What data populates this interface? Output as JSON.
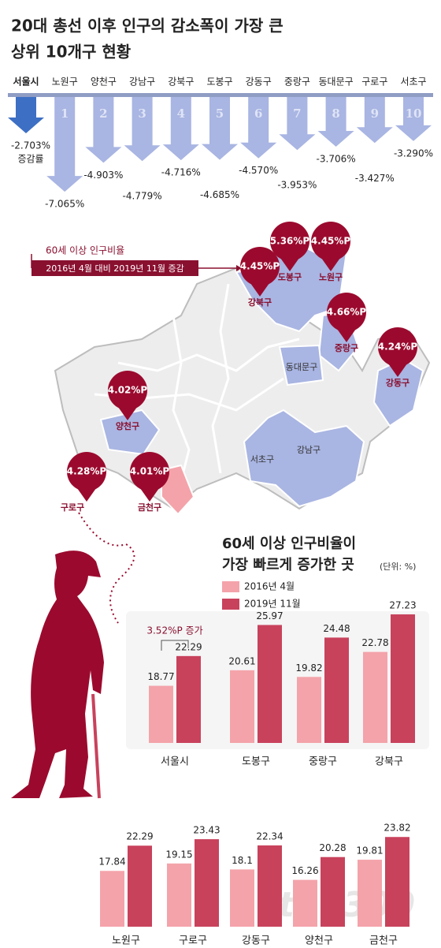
{
  "chart_data": [
    {
      "type": "arrow",
      "title": [
        "20대 총선 이후 인구의 감소폭이 가장 큰",
        "상위 10개구 현황"
      ],
      "categories": [
        "서울시",
        "노원구",
        "양천구",
        "강남구",
        "강북구",
        "도봉구",
        "강동구",
        "중랑구",
        "동대문구",
        "구로구",
        "서초구"
      ],
      "ranks": [
        null,
        1,
        2,
        3,
        4,
        5,
        6,
        7,
        8,
        9,
        10
      ],
      "values": [
        -2.703,
        -7.065,
        -4.903,
        -4.779,
        -4.716,
        -4.685,
        -4.57,
        -3.953,
        -3.706,
        -3.427,
        -3.29
      ],
      "value_labels": [
        "-2.703%",
        "-7.065%",
        "-4.903%",
        "-4.779%",
        "-4.716%",
        "-4.685%",
        "-4.570%",
        "-3.953%",
        "-3.706%",
        "-3.427%",
        "-3.290%"
      ],
      "value_caption": "증감률",
      "colors": [
        "#3d6fc4",
        "#a9b5e2",
        "#a9b5e2",
        "#a9b5e2",
        "#a9b5e2",
        "#a9b5e2",
        "#a9b5e2",
        "#a9b5e2",
        "#a9b5e2",
        "#a9b5e2",
        "#a9b5e2"
      ]
    },
    {
      "type": "grouped_bar",
      "title": [
        "60세 이상 인구비율이",
        "가장 빠르게 증가한 곳"
      ],
      "unit": "(단위: %)",
      "categories": [
        "서울시",
        "도봉구",
        "중랑구",
        "강북구"
      ],
      "series": [
        {
          "name": "2016년 4월",
          "color": "#f4a3aa",
          "values": [
            18.77,
            20.61,
            19.82,
            22.78
          ]
        },
        {
          "name": "2019년 11월",
          "color": "#c8425c",
          "values": [
            22.29,
            25.97,
            24.48,
            27.23
          ]
        }
      ],
      "ylim": [
        12,
        29
      ],
      "annotation": "3.52%P 증가"
    },
    {
      "type": "grouped_bar",
      "categories": [
        "노원구",
        "구로구",
        "강동구",
        "양천구",
        "금천구"
      ],
      "series": [
        {
          "color": "#f4a3aa",
          "values": [
            17.84,
            19.15,
            18.1,
            16.26,
            19.81
          ]
        },
        {
          "color": "#c8425c",
          "values": [
            22.29,
            23.43,
            22.34,
            20.28,
            23.82
          ]
        }
      ],
      "ylim": [
        8,
        29
      ]
    }
  ],
  "map": {
    "note_title": "60세 이상 인구비율",
    "note_text": "2016년 4월 대비 2019년 11월 증감",
    "pins": [
      {
        "district": "강북구",
        "change": "4.45%P"
      },
      {
        "district": "도봉구",
        "change": "5.36%P"
      },
      {
        "district": "노원구",
        "change": "4.45%P"
      },
      {
        "district": "중랑구",
        "change": "4.66%P"
      },
      {
        "district": "강동구",
        "change": "4.24%P"
      },
      {
        "district": "양천구",
        "change": "4.02%P"
      },
      {
        "district": "구로구",
        "change": "4.28%P"
      },
      {
        "district": "금천구",
        "change": "4.01%P"
      }
    ],
    "labels": [
      "동대문구",
      "서초구",
      "강남구"
    ]
  },
  "watermark": "the300"
}
